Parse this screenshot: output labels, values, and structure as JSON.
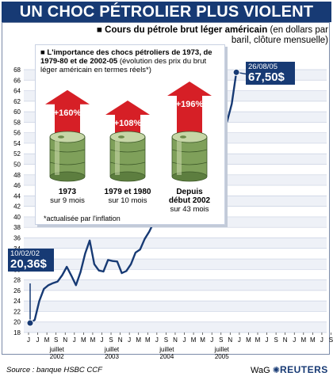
{
  "title": "UN CHOC PÉTROLIER PLUS VIOLENT",
  "subtitle": {
    "bold": "Cours du pétrole brut léger américain",
    "normal": "(en dollars par baril, clôture mensuelle)"
  },
  "colors": {
    "navy": "#173a74",
    "red": "#d61f26",
    "band": "#eef1f7",
    "line": "#173a74"
  },
  "inset": {
    "title_bold": "L'importance des chocs pétroliers de 1973, de 1979-80 et de 2002-05",
    "title_normal": "(évolution des prix du brut léger américain en termes réels*)",
    "columns": [
      {
        "pct": "+160%",
        "period": "1973",
        "duration": "sur 9 mois",
        "arrow_level": 0.72
      },
      {
        "pct": "+108%",
        "period": "1979 et 1980",
        "duration": "sur 10 mois",
        "arrow_level": 0.5
      },
      {
        "pct": "+196%",
        "period_line1": "Depuis",
        "period_line2": "début 2002",
        "duration": "sur 43 mois",
        "arrow_level": 0.9
      }
    ],
    "note": "*actualisée par l'inflation"
  },
  "callouts": {
    "start": {
      "date": "10/02/02",
      "value": "20,36$"
    },
    "end": {
      "date": "26/08/05",
      "value": "67,50$"
    }
  },
  "footer": {
    "source": "Source : banque HSBC CCF",
    "brand_prefix": "WaG",
    "brand": "REUTERS"
  },
  "chart_data": {
    "type": "line",
    "title": "UN CHOC PÉTROLIER PLUS VIOLENT",
    "ylim": [
      18,
      68
    ],
    "y_ticks": [
      18,
      20,
      22,
      24,
      26,
      28,
      30,
      32,
      34,
      36,
      38,
      40,
      42,
      44,
      46,
      48,
      50,
      52,
      54,
      56,
      58,
      60,
      62,
      64,
      66,
      68
    ],
    "x_month_labels": [
      "J",
      "J",
      "M",
      "S",
      "N",
      "J",
      "M",
      "M",
      "J",
      "S",
      "N",
      "J",
      "M",
      "M",
      "J",
      "S",
      "N",
      "J",
      "M",
      "M",
      "J",
      "S",
      "N",
      "J",
      "M",
      "M",
      "J",
      "S",
      "N",
      "J",
      "M",
      "M",
      "J",
      "S"
    ],
    "x_year_labels": [
      {
        "index": 6,
        "line1": "juillet",
        "line2": "2002"
      },
      {
        "index": 18,
        "line1": "juillet",
        "line2": "2003"
      },
      {
        "index": 30,
        "line1": "juillet",
        "line2": "2004"
      },
      {
        "index": 42,
        "line1": "juillet",
        "line2": "2005"
      }
    ],
    "series": [
      {
        "values": [
          [
            1,
            19.8
          ],
          [
            2,
            20.4
          ],
          [
            3,
            24.0
          ],
          [
            4,
            26.3
          ],
          [
            5,
            27.0
          ],
          [
            6,
            27.4
          ],
          [
            7,
            27.7
          ],
          [
            8,
            28.9
          ],
          [
            9,
            30.5
          ],
          [
            10,
            28.8
          ],
          [
            11,
            27.0
          ],
          [
            12,
            29.5
          ],
          [
            13,
            33.0
          ],
          [
            14,
            35.5
          ],
          [
            15,
            31.0
          ],
          [
            16,
            29.8
          ],
          [
            17,
            29.6
          ],
          [
            18,
            31.8
          ],
          [
            19,
            31.6
          ],
          [
            20,
            31.5
          ],
          [
            21,
            29.3
          ],
          [
            22,
            29.7
          ],
          [
            23,
            31.0
          ],
          [
            24,
            33.2
          ],
          [
            25,
            33.8
          ],
          [
            26,
            35.8
          ],
          [
            27,
            37.2
          ],
          [
            28,
            39.0
          ],
          [
            29,
            40.0
          ],
          [
            30,
            42.2
          ],
          [
            31,
            43.5
          ],
          [
            32,
            44.3
          ],
          [
            33,
            49.6
          ],
          [
            34,
            51.5
          ],
          [
            35,
            49.4
          ],
          [
            36,
            44.7
          ],
          [
            37,
            45.8
          ],
          [
            38,
            51.0
          ],
          [
            39,
            55.1
          ],
          [
            40,
            52.6
          ],
          [
            41,
            51.0
          ],
          [
            42,
            54.0
          ],
          [
            43,
            56.3
          ],
          [
            44,
            58.2
          ],
          [
            45,
            61.5
          ],
          [
            46,
            67.5
          ]
        ]
      }
    ]
  }
}
